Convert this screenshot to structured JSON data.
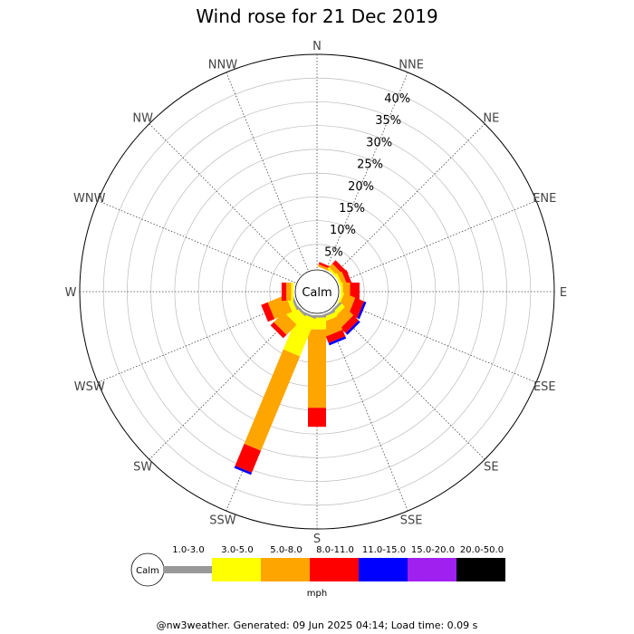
{
  "chart_data": {
    "type": "wind_rose",
    "title": "Wind rose for 21 Dec 2019",
    "directions": [
      "N",
      "NNE",
      "NE",
      "ENE",
      "E",
      "ESE",
      "SE",
      "SSE",
      "S",
      "SSW",
      "SW",
      "WSW",
      "W",
      "WNW",
      "NW",
      "NNW"
    ],
    "radial_ticks": [
      "5%",
      "10%",
      "15%",
      "20%",
      "25%",
      "30%",
      "35%",
      "40%"
    ],
    "radial_max": 45,
    "calm_label": "Calm",
    "units": "mph",
    "speed_bins": [
      {
        "label": "1.0-3.0",
        "color": "#999999"
      },
      {
        "label": "3.0-5.0",
        "color": "#ffff00"
      },
      {
        "label": "5.0-8.0",
        "color": "#ffa500"
      },
      {
        "label": "8.0-11.0",
        "color": "#ff0000"
      },
      {
        "label": "11.0-15.0",
        "color": "#0000ff"
      },
      {
        "label": "15.0-20.0",
        "color": "#a020f0"
      },
      {
        "label": "20.0-50.0",
        "color": "#000000"
      }
    ],
    "series": [
      {
        "direction": "N",
        "values": [
          0.0,
          0.0,
          0.0,
          0.0,
          0.0,
          0.0,
          0.0
        ]
      },
      {
        "direction": "NNE",
        "values": [
          0.0,
          0.0,
          0.5,
          0.5,
          0.0,
          0.0,
          0.0
        ]
      },
      {
        "direction": "NE",
        "values": [
          0.0,
          0.5,
          1.0,
          1.0,
          0.0,
          0.0,
          0.0
        ]
      },
      {
        "direction": "ENE",
        "values": [
          0.0,
          0.5,
          1.0,
          1.0,
          0.0,
          0.0,
          0.0
        ]
      },
      {
        "direction": "E",
        "values": [
          0.0,
          0.5,
          1.5,
          2.0,
          0.0,
          0.0,
          0.0
        ]
      },
      {
        "direction": "ESE",
        "values": [
          0.0,
          0.5,
          2.5,
          2.0,
          0.5,
          0.0,
          0.0
        ]
      },
      {
        "direction": "SE",
        "values": [
          0.5,
          1.0,
          2.5,
          1.5,
          0.5,
          0.0,
          0.0
        ]
      },
      {
        "direction": "SSE",
        "values": [
          0.5,
          1.0,
          3.0,
          1.5,
          0.5,
          0.0,
          0.0
        ]
      },
      {
        "direction": "S",
        "values": [
          0.5,
          2.5,
          16.5,
          4.0,
          0.0,
          0.0,
          0.0
        ]
      },
      {
        "direction": "SSW",
        "values": [
          0.5,
          8.5,
          21.5,
          5.0,
          0.5,
          0.0,
          0.0
        ]
      },
      {
        "direction": "SW",
        "values": [
          0.5,
          2.5,
          3.0,
          1.0,
          0.0,
          0.0,
          0.0
        ]
      },
      {
        "direction": "WSW",
        "values": [
          0.5,
          1.0,
          4.0,
          1.5,
          0.0,
          0.0,
          0.0
        ]
      },
      {
        "direction": "W",
        "values": [
          0.0,
          0.5,
          1.0,
          1.0,
          0.0,
          0.0,
          0.0
        ]
      },
      {
        "direction": "WNW",
        "values": [
          0.0,
          0.0,
          0.0,
          0.0,
          0.0,
          0.0,
          0.0
        ]
      },
      {
        "direction": "NW",
        "values": [
          0.0,
          0.0,
          0.0,
          0.0,
          0.0,
          0.0,
          0.0
        ]
      },
      {
        "direction": "NNW",
        "values": [
          0.0,
          0.0,
          0.0,
          0.0,
          0.0,
          0.0,
          0.0
        ]
      }
    ],
    "grid": true
  },
  "footer": "@nw3weather. Generated: 09 Jun 2025 04:14; Load time: 0.09 s"
}
